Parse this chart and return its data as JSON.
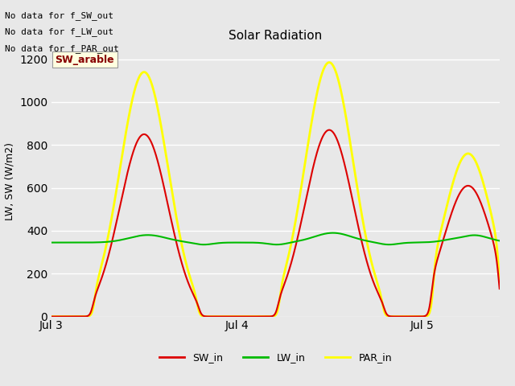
{
  "title": "Solar Radiation",
  "ylabel": "LW, SW (W/m2)",
  "annotations": [
    "No data for f_SW_out",
    "No data for f_LW_out",
    "No data for f_PAR_out"
  ],
  "tooltip_label": "SW_arable",
  "xlim_days": [
    3.0,
    5.42
  ],
  "ylim": [
    0,
    1260
  ],
  "yticks": [
    0,
    200,
    400,
    600,
    800,
    1000,
    1200
  ],
  "xtick_labels": [
    "Jul 3",
    "Jul 4",
    "Jul 5"
  ],
  "xtick_positions": [
    3.0,
    4.0,
    5.0
  ],
  "bg_color": "#e8e8e8",
  "grid_color": "#ffffff",
  "line_colors": {
    "SW_in": "#dd0000",
    "LW_in": "#00bb00",
    "PAR_in": "#ffff00"
  },
  "line_widths": {
    "SW_in": 1.5,
    "LW_in": 1.5,
    "PAR_in": 2.0
  },
  "figsize": [
    6.4,
    4.8
  ],
  "dpi": 100
}
